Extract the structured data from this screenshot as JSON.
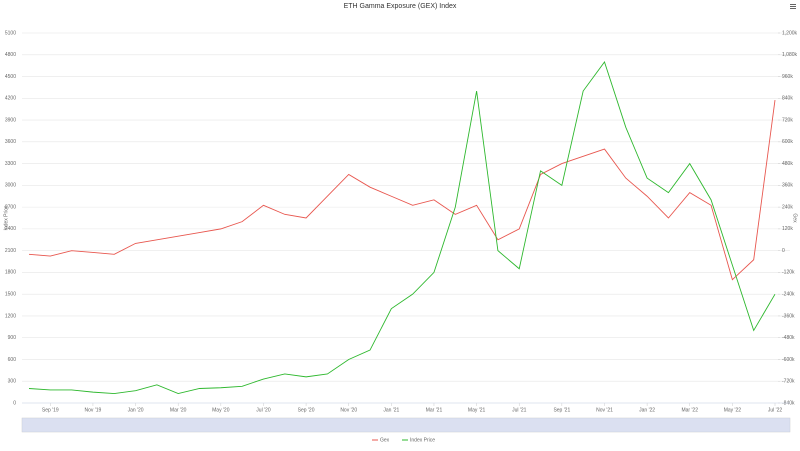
{
  "chart_data": {
    "type": "line",
    "title": "ETH Gamma Exposure (GEX) Index",
    "y_label": "Index Price",
    "y2_label": "Gex",
    "x": [
      "2019-08",
      "2019-09",
      "2019-10",
      "2019-11",
      "2019-12",
      "2020-01",
      "2020-02",
      "2020-03",
      "2020-04",
      "2020-05",
      "2020-06",
      "2020-07",
      "2020-08",
      "2020-09",
      "2020-10",
      "2020-11",
      "2020-12",
      "2021-01",
      "2021-02",
      "2021-03",
      "2021-04",
      "2021-05",
      "2021-06",
      "2021-07",
      "2021-08",
      "2021-09",
      "2021-10",
      "2021-11",
      "2021-12",
      "2022-01",
      "2022-02",
      "2022-03",
      "2022-04",
      "2022-05",
      "2022-06",
      "2022-07"
    ],
    "series": [
      {
        "name": "Gex",
        "color": "#e8574f",
        "axis": "y2",
        "values": [
          -20000,
          -30000,
          0,
          -10000,
          -20000,
          40000,
          60000,
          80000,
          100000,
          120000,
          160000,
          250000,
          200000,
          180000,
          300000,
          420000,
          350000,
          300000,
          250000,
          280000,
          200000,
          250000,
          60000,
          120000,
          420000,
          480000,
          520000,
          560000,
          400000,
          300000,
          180000,
          320000,
          250000,
          -160000,
          -50000,
          830000
        ]
      },
      {
        "name": "Index Price",
        "color": "#2eb82e",
        "values": [
          200,
          180,
          180,
          150,
          130,
          170,
          250,
          130,
          200,
          210,
          230,
          330,
          400,
          360,
          400,
          600,
          730,
          1300,
          1500,
          1800,
          2700,
          4300,
          2100,
          1850,
          3200,
          3000,
          4300,
          4700,
          3800,
          3100,
          2900,
          3300,
          2800,
          1900,
          1000,
          1500
        ]
      }
    ],
    "xlim": [
      "2019-08",
      "2022-07"
    ],
    "xticks": [
      {
        "value": "2019-09",
        "label": "Sep '19"
      },
      {
        "value": "2019-11",
        "label": "Nov '19"
      },
      {
        "value": "2020-01",
        "label": "Jan '20"
      },
      {
        "value": "2020-03",
        "label": "Mar '20"
      },
      {
        "value": "2020-05",
        "label": "May '20"
      },
      {
        "value": "2020-07",
        "label": "Jul '20"
      },
      {
        "value": "2020-09",
        "label": "Sep '20"
      },
      {
        "value": "2020-11",
        "label": "Nov '20"
      },
      {
        "value": "2021-01",
        "label": "Jan '21"
      },
      {
        "value": "2021-03",
        "label": "Mar '21"
      },
      {
        "value": "2021-05",
        "label": "May '21"
      },
      {
        "value": "2021-07",
        "label": "Jul '21"
      },
      {
        "value": "2021-09",
        "label": "Sep '21"
      },
      {
        "value": "2021-11",
        "label": "Nov '21"
      },
      {
        "value": "2022-01",
        "label": "Jan '22"
      },
      {
        "value": "2022-03",
        "label": "Mar '22"
      },
      {
        "value": "2022-05",
        "label": "May '22"
      },
      {
        "value": "2022-07",
        "label": "Jul '22"
      }
    ],
    "ylim": [
      0,
      5100
    ],
    "yticks": [
      0,
      300,
      600,
      900,
      1200,
      1500,
      1800,
      2100,
      2400,
      2700,
      3000,
      3300,
      3600,
      3900,
      4200,
      4500,
      4800,
      5100
    ],
    "y2lim": [
      -840000,
      1200000
    ],
    "y2ticks": [
      {
        "value": -840000,
        "label": "-840k"
      },
      {
        "value": -720000,
        "label": "-720k"
      },
      {
        "value": -600000,
        "label": "-600k"
      },
      {
        "value": -480000,
        "label": "-480k"
      },
      {
        "value": -360000,
        "label": "-360k"
      },
      {
        "value": -240000,
        "label": "-240k"
      },
      {
        "value": -120000,
        "label": "-120k"
      },
      {
        "value": 0,
        "label": "0"
      },
      {
        "value": 120000,
        "label": "120k"
      },
      {
        "value": 240000,
        "label": "240k"
      },
      {
        "value": 360000,
        "label": "360k"
      },
      {
        "value": 480000,
        "label": "480k"
      },
      {
        "value": 600000,
        "label": "600k"
      },
      {
        "value": 720000,
        "label": "720k"
      },
      {
        "value": 840000,
        "label": "840k"
      },
      {
        "value": 960000,
        "label": "960k"
      },
      {
        "value": 1080000,
        "label": "1,080k"
      },
      {
        "value": 1200000,
        "label": "1,200k"
      }
    ],
    "grid": true
  }
}
